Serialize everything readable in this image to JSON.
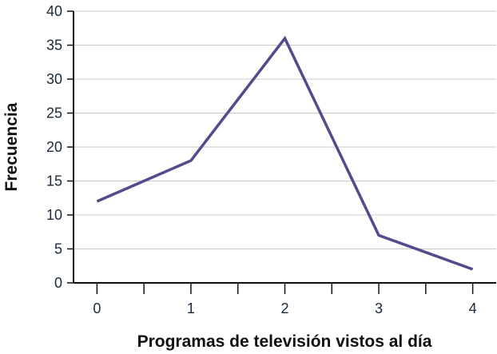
{
  "chart_data": {
    "type": "line",
    "title": "",
    "xlabel": "Programas de televisión vistos al día",
    "ylabel": "Frecuencia",
    "x": [
      0,
      1,
      2,
      3,
      4
    ],
    "y": [
      12,
      18,
      36,
      7,
      2
    ],
    "xticks": [
      "0",
      "1",
      "2",
      "3",
      "4"
    ],
    "yticks": [
      "0",
      "5",
      "10",
      "15",
      "20",
      "25",
      "30",
      "35",
      "40"
    ],
    "xlim": [
      -0.25,
      4.25
    ],
    "ylim": [
      0,
      40
    ],
    "grid": "horizontal",
    "line_color": "#564a8c"
  }
}
